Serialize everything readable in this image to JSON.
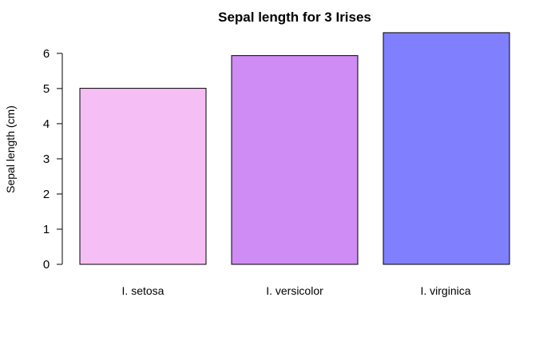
{
  "chart_data": {
    "type": "bar",
    "title": "Sepal length for 3 Irises",
    "xlabel": "",
    "ylabel": "Sepal length (cm)",
    "categories": [
      "I. setosa",
      "I. versicolor",
      "I. virginica"
    ],
    "values": [
      5.006,
      5.936,
      6.588
    ],
    "colors": [
      "#F5BEF5",
      "#CF8CF5",
      "#8080FF"
    ],
    "ylim": [
      0,
      6.6
    ],
    "yticks": [
      0,
      1,
      2,
      3,
      4,
      5,
      6
    ],
    "grid": false,
    "legend": "none"
  }
}
